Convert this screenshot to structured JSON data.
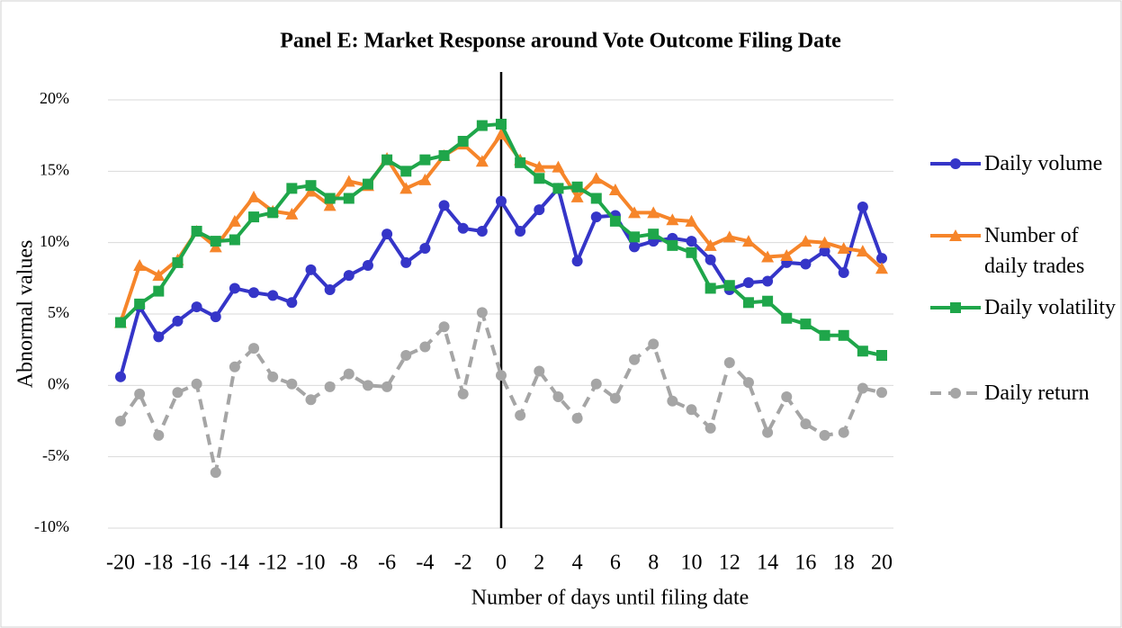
{
  "chart_data": {
    "type": "line",
    "title": "Panel E: Market Response around Vote Outcome Filing Date",
    "x_label": "Number of days until filing date",
    "y_label": "Abnormal values",
    "x": [
      -20,
      -19,
      -18,
      -17,
      -16,
      -15,
      -14,
      -13,
      -12,
      -11,
      -10,
      -9,
      -8,
      -7,
      -6,
      -5,
      -4,
      -3,
      -2,
      -1,
      0,
      1,
      2,
      3,
      4,
      5,
      6,
      7,
      8,
      9,
      10,
      11,
      12,
      13,
      14,
      15,
      16,
      17,
      18,
      19,
      20
    ],
    "xlim": [
      -20,
      20
    ],
    "xticks": [
      -20,
      -18,
      -16,
      -14,
      -12,
      -10,
      -8,
      -6,
      -4,
      -2,
      0,
      2,
      4,
      6,
      8,
      10,
      12,
      14,
      16,
      18,
      20
    ],
    "ylim": [
      -10,
      20
    ],
    "yticks": [
      {
        "value": -10,
        "label": "-10%"
      },
      {
        "value": -5,
        "label": "-5%"
      },
      {
        "value": 0,
        "label": "0%"
      },
      {
        "value": 5,
        "label": "5%"
      },
      {
        "value": 10,
        "label": "10%"
      },
      {
        "value": 15,
        "label": "15%"
      },
      {
        "value": 20,
        "label": "20%"
      }
    ],
    "grid": true,
    "vline": 0,
    "legend": "right",
    "series": [
      {
        "name": "Daily volume",
        "color": "#3535c8",
        "marker": "circle",
        "dashed": false,
        "values": [
          0.6,
          5.5,
          3.4,
          4.5,
          5.5,
          4.8,
          6.8,
          6.5,
          6.3,
          5.8,
          8.1,
          6.7,
          7.7,
          8.4,
          10.6,
          8.6,
          9.6,
          12.6,
          11.0,
          10.8,
          12.9,
          10.8,
          12.3,
          13.8,
          8.7,
          11.8,
          11.9,
          9.7,
          10.1,
          10.3,
          10.1,
          8.8,
          6.7,
          7.2,
          7.3,
          8.6,
          8.5,
          9.4,
          7.9,
          12.5,
          8.9
        ]
      },
      {
        "name": "Number of daily trades",
        "color": "#f6852a",
        "marker": "triangle",
        "dashed": false,
        "values": [
          4.4,
          8.4,
          7.7,
          8.8,
          10.8,
          9.7,
          11.5,
          13.2,
          12.2,
          12.0,
          13.6,
          12.6,
          14.3,
          14.0,
          15.9,
          13.8,
          14.4,
          16.1,
          16.9,
          15.7,
          17.6,
          15.8,
          15.3,
          15.3,
          13.2,
          14.5,
          13.7,
          12.1,
          12.1,
          11.6,
          11.5,
          9.8,
          10.4,
          10.1,
          9.0,
          9.1,
          10.1,
          10.0,
          9.6,
          9.4,
          8.2
        ]
      },
      {
        "name": "Daily volatility",
        "color": "#1fa64a",
        "marker": "square",
        "dashed": false,
        "values": [
          4.4,
          5.7,
          6.6,
          8.6,
          10.8,
          10.1,
          10.2,
          11.8,
          12.1,
          13.8,
          14.0,
          13.1,
          13.1,
          14.1,
          15.8,
          15.0,
          15.8,
          16.1,
          17.1,
          18.2,
          18.3,
          15.6,
          14.5,
          13.8,
          13.9,
          13.1,
          11.5,
          10.4,
          10.6,
          9.8,
          9.3,
          6.8,
          7.0,
          5.8,
          5.9,
          4.7,
          4.3,
          3.5,
          3.5,
          2.4,
          2.1
        ]
      },
      {
        "name": "Daily return",
        "color": "#a5a5a5",
        "marker": "circle",
        "dashed": true,
        "values": [
          -2.5,
          -0.6,
          -3.5,
          -0.5,
          0.1,
          -6.1,
          1.3,
          2.6,
          0.6,
          0.1,
          -1.0,
          -0.1,
          0.8,
          0.0,
          -0.1,
          2.1,
          2.7,
          4.1,
          -0.6,
          5.1,
          0.7,
          -2.1,
          1.0,
          -0.8,
          -2.3,
          0.1,
          -0.9,
          1.8,
          2.9,
          -1.1,
          -1.7,
          -3.0,
          1.6,
          0.2,
          -3.3,
          -0.8,
          -2.7,
          -3.5,
          -3.3,
          -0.2,
          -0.5
        ]
      }
    ]
  }
}
